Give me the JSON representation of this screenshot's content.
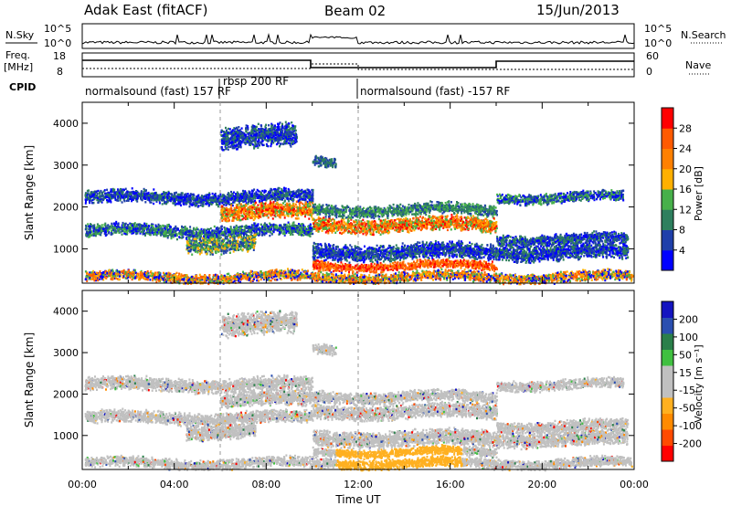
{
  "header": {
    "left": "Adak East (fitACF)",
    "center": "Beam 02",
    "right": "15/Jun/2013"
  },
  "panels": {
    "nsky": {
      "label": "N.Sky",
      "right_label": "N.Search",
      "ticks": [
        "10^5",
        "10^0"
      ]
    },
    "freq": {
      "label_line1": "Freq.",
      "label_line2": "[MHz]",
      "right_label": "Nave",
      "left_ticks": [
        "18",
        "8"
      ],
      "right_ticks": [
        "60",
        "0"
      ]
    },
    "cpid": {
      "label": "CPID",
      "segments": [
        "normalsound (fast) 157 RF",
        "rbsp 200 RF",
        "normalsound (fast) -157 RF"
      ]
    }
  },
  "colors": {
    "power_scale": [
      "#0000ff",
      "#1f3faa",
      "#2e7f5e",
      "#47b04a",
      "#ffb000",
      "#ff8000",
      "#ff5a00",
      "#ff0000"
    ],
    "velocity_scale": [
      "#ff0000",
      "#ff4a00",
      "#ff8a00",
      "#ffb020",
      "#c0c0c0",
      "#c0c0c0",
      "#40c040",
      "#2a7f4a",
      "#2a4fb0",
      "#1414c0"
    ]
  },
  "chart_data": [
    {
      "type": "heatmap",
      "name": "power-panel",
      "ylabel": "Slant Range [km]",
      "ylim": [
        180,
        4500
      ],
      "xlim": [
        0,
        24
      ],
      "yticks": [
        1000,
        2000,
        3000,
        4000
      ],
      "colorbar": {
        "label": "Power [dB]",
        "ticks": [
          "4",
          "8",
          "12",
          "16",
          "20",
          "24",
          "28"
        ]
      },
      "cpid_boundaries_hours": [
        6,
        12
      ]
    },
    {
      "type": "heatmap",
      "name": "velocity-panel",
      "ylabel": "Slant Range [km]",
      "xlabel": "Time UT",
      "ylim": [
        180,
        4500
      ],
      "xlim": [
        0,
        24
      ],
      "yticks": [
        1000,
        2000,
        3000,
        4000
      ],
      "xticks": [
        "00:00",
        "04:00",
        "08:00",
        "12:00",
        "16:00",
        "20:00",
        "00:00"
      ],
      "colorbar": {
        "label": "Velocity [m s⁻¹]",
        "ticks": [
          "-200",
          "-100",
          "-50",
          "-15",
          "15",
          "50",
          "100",
          "200"
        ]
      },
      "cpid_boundaries_hours": [
        6,
        12
      ]
    }
  ]
}
